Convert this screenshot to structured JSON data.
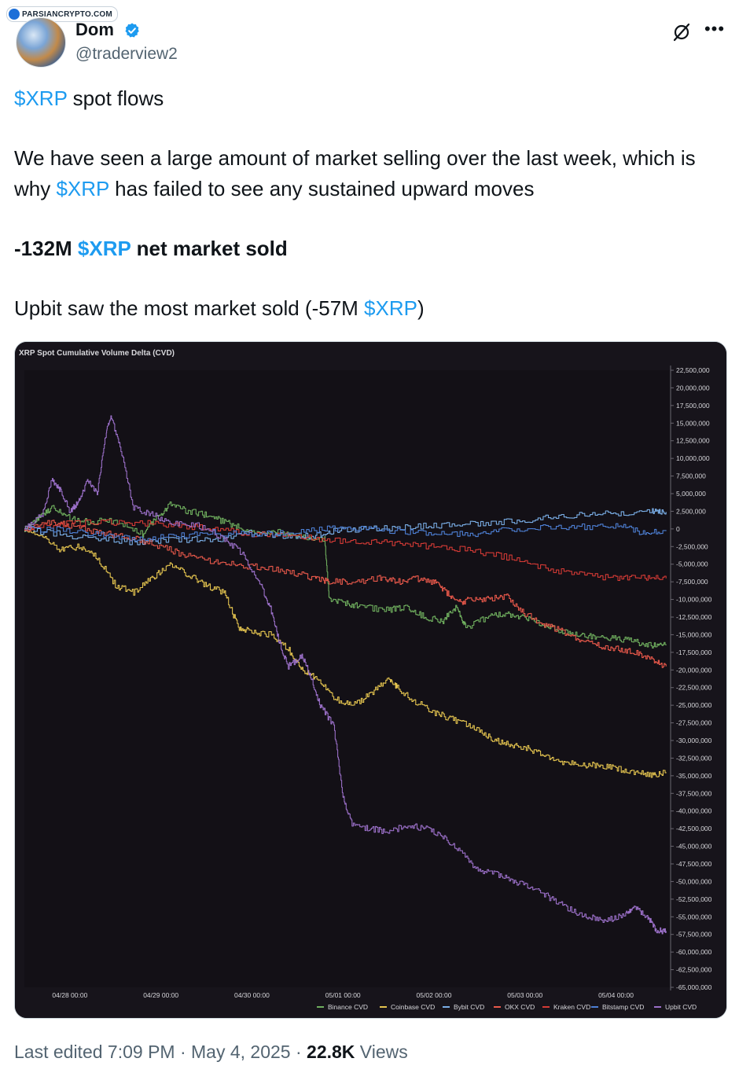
{
  "watermark": {
    "text": "PARSIANCRYPTO.COM"
  },
  "author": {
    "name": "Dom",
    "handle": "@traderview2",
    "verified": true,
    "verified_color": "#1d9bf0"
  },
  "tweet": {
    "line1_cashtag": "$XRP",
    "line1_text": " spot flows",
    "para2_a": "We have seen a large amount of market selling over the last week, which is why ",
    "para2_cashtag": "$XRP",
    "para2_b": " has failed to see any sustained upward moves",
    "para3_a": "-132M ",
    "para3_cashtag": "$XRP",
    "para3_b": " net market sold",
    "para4_a": "Upbit saw the most market sold (-57M ",
    "para4_cashtag": "$XRP",
    "para4_b": ")"
  },
  "meta": {
    "edited": "Last edited 7:09 PM · May 4, 2025 · ",
    "views_count": "22.8K",
    "views_label": " Views"
  },
  "icons": {
    "grok": "grok-icon",
    "more": "more-icon",
    "verified": "verified-badge-icon"
  },
  "chart_data": {
    "type": "line",
    "title": "XRP Spot Cumulative Volume Delta (CVD)",
    "x_ticks": [
      "04/28 00:00",
      "04/29 00:00",
      "04/30 00:00",
      "05/01 00:00",
      "05/02 00:00",
      "05/03 00:00",
      "05/04 00:00"
    ],
    "x_range": [
      -0.5,
      6.6
    ],
    "ylim": [
      -65000000,
      23000000
    ],
    "y_ticks": [
      "22,500,000",
      "20,000,000",
      "17,500,000",
      "15,000,000",
      "12,500,000",
      "10,000,000",
      "7,500,000",
      "5,000,000",
      "2,500,000",
      "0",
      "-2,500,000",
      "-5,000,000",
      "-7,500,000",
      "-10,000,000",
      "-12,500,000",
      "-15,000,000",
      "-17,500,000",
      "-20,000,000",
      "-22,500,000",
      "-25,000,000",
      "-27,500,000",
      "-30,000,000",
      "-32,500,000",
      "-35,000,000",
      "-37,500,000",
      "-40,000,000",
      "-42,500,000",
      "-45,000,000",
      "-47,500,000",
      "-50,000,000",
      "-52,500,000",
      "-55,000,000",
      "-57,500,000",
      "-60,000,000",
      "-62,500,000",
      "-65,000,000"
    ],
    "y_tick_step": 2500000,
    "legend_position": "bottom-right",
    "grid": false,
    "series": [
      {
        "name": "Binance CVD",
        "color": "#6fae5e",
        "points": [
          [
            -0.5,
            0
          ],
          [
            -0.35,
            1500000
          ],
          [
            -0.2,
            3000000
          ],
          [
            0,
            1500000
          ],
          [
            0.2,
            1000000
          ],
          [
            0.5,
            1200000
          ],
          [
            0.8,
            -800000
          ],
          [
            0.95,
            1500000
          ],
          [
            1.1,
            3500000
          ],
          [
            1.3,
            2500000
          ],
          [
            1.5,
            2000000
          ],
          [
            1.7,
            1000000
          ],
          [
            1.9,
            0
          ],
          [
            2.1,
            -800000
          ],
          [
            2.3,
            -500000
          ],
          [
            2.5,
            -1000000
          ],
          [
            2.8,
            -1500000
          ],
          [
            2.85,
            -10000000
          ],
          [
            3.0,
            -10500000
          ],
          [
            3.2,
            -11000000
          ],
          [
            3.5,
            -11500000
          ],
          [
            3.7,
            -11000000
          ],
          [
            3.9,
            -12500000
          ],
          [
            4.1,
            -13000000
          ],
          [
            4.25,
            -11000000
          ],
          [
            4.35,
            -14000000
          ],
          [
            4.6,
            -12500000
          ],
          [
            4.8,
            -12000000
          ],
          [
            5.0,
            -12500000
          ],
          [
            5.2,
            -13500000
          ],
          [
            5.4,
            -14500000
          ],
          [
            5.6,
            -15000000
          ],
          [
            5.8,
            -15500000
          ],
          [
            6.0,
            -15500000
          ],
          [
            6.2,
            -16000000
          ],
          [
            6.4,
            -16500000
          ],
          [
            6.55,
            -16500000
          ]
        ]
      },
      {
        "name": "Coinbase CVD",
        "color": "#e3c34f",
        "points": [
          [
            -0.5,
            0
          ],
          [
            -0.3,
            -1000000
          ],
          [
            -0.1,
            -3000000
          ],
          [
            0.1,
            -2500000
          ],
          [
            0.3,
            -4000000
          ],
          [
            0.5,
            -8000000
          ],
          [
            0.7,
            -9000000
          ],
          [
            0.9,
            -7000000
          ],
          [
            1.1,
            -5000000
          ],
          [
            1.3,
            -6500000
          ],
          [
            1.5,
            -8000000
          ],
          [
            1.7,
            -9000000
          ],
          [
            1.85,
            -14000000
          ],
          [
            2.0,
            -14500000
          ],
          [
            2.2,
            -15000000
          ],
          [
            2.4,
            -17000000
          ],
          [
            2.55,
            -20000000
          ],
          [
            2.7,
            -21000000
          ],
          [
            2.9,
            -24000000
          ],
          [
            3.1,
            -25000000
          ],
          [
            3.3,
            -23500000
          ],
          [
            3.5,
            -21000000
          ],
          [
            3.6,
            -22500000
          ],
          [
            3.8,
            -24500000
          ],
          [
            4.0,
            -26000000
          ],
          [
            4.2,
            -27000000
          ],
          [
            4.4,
            -28000000
          ],
          [
            4.6,
            -29500000
          ],
          [
            4.8,
            -30500000
          ],
          [
            5.0,
            -31000000
          ],
          [
            5.2,
            -32000000
          ],
          [
            5.4,
            -33000000
          ],
          [
            5.6,
            -33500000
          ],
          [
            5.8,
            -33500000
          ],
          [
            6.0,
            -34000000
          ],
          [
            6.2,
            -34500000
          ],
          [
            6.4,
            -35000000
          ],
          [
            6.55,
            -34500000
          ]
        ]
      },
      {
        "name": "Bybit CVD",
        "color": "#7aaee6",
        "points": [
          [
            -0.5,
            0
          ],
          [
            0,
            -1000000
          ],
          [
            0.4,
            -1500000
          ],
          [
            0.8,
            -2000000
          ],
          [
            1.2,
            -1500000
          ],
          [
            1.6,
            -1500000
          ],
          [
            2.0,
            -500000
          ],
          [
            2.4,
            -1000000
          ],
          [
            2.7,
            -1000000
          ],
          [
            2.9,
            -300000
          ],
          [
            3.2,
            0
          ],
          [
            3.6,
            200000
          ],
          [
            4.0,
            500000
          ],
          [
            4.4,
            800000
          ],
          [
            4.8,
            1000000
          ],
          [
            5.2,
            1500000
          ],
          [
            5.6,
            2000000
          ],
          [
            6.0,
            2200000
          ],
          [
            6.4,
            2500000
          ],
          [
            6.55,
            2400000
          ]
        ]
      },
      {
        "name": "OKX CVD",
        "color": "#e8584a",
        "points": [
          [
            -0.5,
            0
          ],
          [
            -0.2,
            1000000
          ],
          [
            0,
            500000
          ],
          [
            0.3,
            -500000
          ],
          [
            0.6,
            -1000000
          ],
          [
            0.9,
            -2000000
          ],
          [
            1.2,
            -3500000
          ],
          [
            1.5,
            -4500000
          ],
          [
            1.8,
            -5000000
          ],
          [
            2.1,
            -5500000
          ],
          [
            2.4,
            -6000000
          ],
          [
            2.7,
            -7000000
          ],
          [
            2.85,
            -7500000
          ],
          [
            3.1,
            -7500000
          ],
          [
            3.4,
            -7000000
          ],
          [
            3.6,
            -7500000
          ],
          [
            3.8,
            -7000000
          ],
          [
            4.0,
            -7500000
          ],
          [
            4.1,
            -8500000
          ],
          [
            4.25,
            -10500000
          ],
          [
            4.4,
            -10000000
          ],
          [
            4.6,
            -10000000
          ],
          [
            4.8,
            -9500000
          ],
          [
            5.0,
            -12000000
          ],
          [
            5.2,
            -13500000
          ],
          [
            5.4,
            -14500000
          ],
          [
            5.6,
            -16000000
          ],
          [
            5.8,
            -16500000
          ],
          [
            6.0,
            -17000000
          ],
          [
            6.2,
            -17500000
          ],
          [
            6.4,
            -18500000
          ],
          [
            6.55,
            -19500000
          ]
        ]
      },
      {
        "name": "Kraken CVD",
        "color": "#d43a35",
        "points": [
          [
            -0.5,
            0
          ],
          [
            0,
            800000
          ],
          [
            0.4,
            1000000
          ],
          [
            0.8,
            800000
          ],
          [
            1.2,
            500000
          ],
          [
            1.6,
            0
          ],
          [
            2.0,
            -800000
          ],
          [
            2.4,
            -1000000
          ],
          [
            2.8,
            -1500000
          ],
          [
            3.2,
            -1800000
          ],
          [
            3.6,
            -2000000
          ],
          [
            4.0,
            -2500000
          ],
          [
            4.4,
            -3000000
          ],
          [
            4.8,
            -4000000
          ],
          [
            5.2,
            -5500000
          ],
          [
            5.6,
            -6500000
          ],
          [
            6.0,
            -7000000
          ],
          [
            6.3,
            -7000000
          ],
          [
            6.55,
            -7000000
          ]
        ]
      },
      {
        "name": "Bitstamp CVD",
        "color": "#4d7fd4",
        "points": [
          [
            -0.5,
            0
          ],
          [
            0,
            -200000
          ],
          [
            0.4,
            -1000000
          ],
          [
            0.8,
            -1500000
          ],
          [
            1.2,
            -1000000
          ],
          [
            1.6,
            -500000
          ],
          [
            2.0,
            -800000
          ],
          [
            2.4,
            -500000
          ],
          [
            2.8,
            0
          ],
          [
            3.2,
            0
          ],
          [
            3.6,
            -300000
          ],
          [
            4.0,
            -500000
          ],
          [
            4.4,
            -800000
          ],
          [
            4.8,
            0
          ],
          [
            5.2,
            200000
          ],
          [
            5.6,
            300000
          ],
          [
            6.0,
            500000
          ],
          [
            6.3,
            -500000
          ],
          [
            6.55,
            -300000
          ]
        ]
      },
      {
        "name": "Upbit CVD",
        "color": "#9a6fc7",
        "points": [
          [
            -0.5,
            0
          ],
          [
            -0.3,
            2000000
          ],
          [
            -0.2,
            7000000
          ],
          [
            -0.1,
            5500000
          ],
          [
            0,
            2500000
          ],
          [
            0.1,
            4000000
          ],
          [
            0.2,
            7000000
          ],
          [
            0.3,
            5000000
          ],
          [
            0.4,
            14000000
          ],
          [
            0.45,
            16000000
          ],
          [
            0.55,
            12000000
          ],
          [
            0.7,
            3000000
          ],
          [
            0.9,
            2000000
          ],
          [
            1.1,
            1000000
          ],
          [
            1.4,
            500000
          ],
          [
            1.7,
            -1500000
          ],
          [
            1.9,
            -3500000
          ],
          [
            2.1,
            -8000000
          ],
          [
            2.2,
            -11000000
          ],
          [
            2.3,
            -16000000
          ],
          [
            2.4,
            -19500000
          ],
          [
            2.55,
            -18000000
          ],
          [
            2.65,
            -21000000
          ],
          [
            2.75,
            -25000000
          ],
          [
            2.9,
            -28000000
          ],
          [
            3.0,
            -38000000
          ],
          [
            3.1,
            -42000000
          ],
          [
            3.3,
            -42500000
          ],
          [
            3.5,
            -43000000
          ],
          [
            3.7,
            -42000000
          ],
          [
            3.9,
            -42500000
          ],
          [
            4.1,
            -43500000
          ],
          [
            4.3,
            -46000000
          ],
          [
            4.5,
            -48500000
          ],
          [
            4.7,
            -49000000
          ],
          [
            4.9,
            -50000000
          ],
          [
            5.1,
            -51000000
          ],
          [
            5.3,
            -52500000
          ],
          [
            5.5,
            -54000000
          ],
          [
            5.7,
            -55000000
          ],
          [
            5.9,
            -55500000
          ],
          [
            6.1,
            -54500000
          ],
          [
            6.2,
            -53500000
          ],
          [
            6.35,
            -55000000
          ],
          [
            6.45,
            -57000000
          ],
          [
            6.55,
            -57000000
          ]
        ]
      }
    ]
  }
}
